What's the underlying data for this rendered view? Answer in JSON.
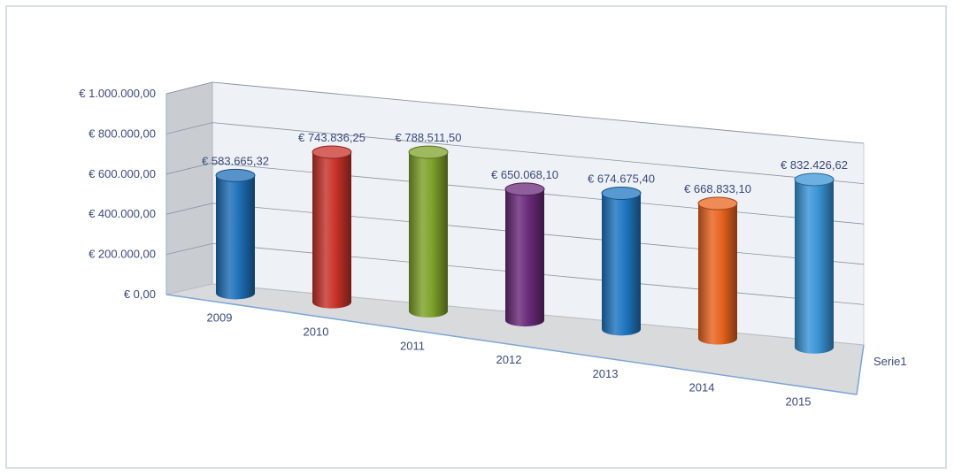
{
  "chart_data": {
    "type": "bar",
    "subtype": "3d-cylinder",
    "categories": [
      "2009",
      "2010",
      "2011",
      "2012",
      "2013",
      "2014",
      "2015"
    ],
    "series": [
      {
        "name": "Serie1",
        "values": [
          583665.32,
          743836.25,
          788511.5,
          650068.1,
          674675.4,
          668833.1,
          832426.62
        ],
        "labels": [
          "€ 583.665,32",
          "€ 743.836,25",
          "€ 788.511,50",
          "€ 650.068,10",
          "€ 674.675,40",
          "€ 668.833,10",
          "€ 832.426,62"
        ],
        "colors": [
          "#1f6fb8",
          "#c8322a",
          "#7fa12a",
          "#6a2a7a",
          "#1f77c0",
          "#e8641e",
          "#3a95d6"
        ]
      }
    ],
    "y_ticks": [
      "€ 0,00",
      "€ 200.000,00",
      "€ 400.000,00",
      "€ 600.000,00",
      "€ 800.000,00",
      "€ 1.000.000,00"
    ],
    "ylim": [
      0,
      1000000
    ],
    "depth_axis_label": "Serie1",
    "grid": true,
    "legend": "none"
  }
}
